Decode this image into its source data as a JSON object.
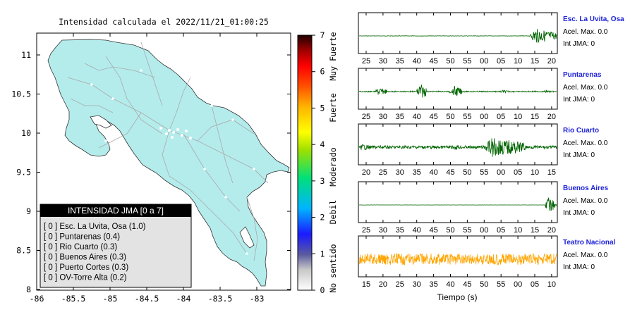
{
  "map": {
    "title": "Intensidad calculada el 2022/11/21_01:00:25",
    "x_ticks": [
      "-86",
      "-85.5",
      "-85",
      "-84.5",
      "-84",
      "-83.5",
      "-83"
    ],
    "y_ticks": [
      "11",
      "10.5",
      "10",
      "9.5",
      "9",
      "8.5",
      "8"
    ],
    "land_color": "#b4ecec",
    "legend": {
      "title": "INTENSIDAD JMA [0 a 7]",
      "items": [
        "[ 0 ]  Esc. La Uvita, Osa (1.0)",
        "[ 0 ]  Puntarenas (0.4)",
        "[ 0 ]  Rio Cuarto (0.3)",
        "[ 0 ]  Buenos Aires (0.3)",
        "[ 0 ]  Puerto Cortes (0.3)",
        "[ 0 ]  OV-Torre Alta (0.2)"
      ]
    }
  },
  "colorbar": {
    "ticks": [
      "0",
      "1",
      "2",
      "3",
      "4",
      "5",
      "6",
      "7"
    ],
    "labels": [
      "No sentido",
      "Debil",
      "Moderado",
      "Fuerte",
      "Muy Fuerte"
    ]
  },
  "seismograms": {
    "xlabel": "Tiempo (s)",
    "stations": [
      {
        "name": "Esc. La Uvita, Osa",
        "accel": "Acel. Max. 0.0",
        "int": "Int JMA: 0",
        "color": "#006400",
        "ticks": [
          "25",
          "30",
          "35",
          "40",
          "45",
          "50",
          "55",
          "00",
          "05",
          "10",
          "15",
          "20"
        ],
        "bursts": [
          [
            0.86,
            1.0,
            0.45
          ]
        ],
        "noise": 0.01
      },
      {
        "name": "Puntarenas",
        "accel": "Acel. Max. 0.0",
        "int": "Int JMA: 0",
        "color": "#006400",
        "ticks": [
          "25",
          "30",
          "35",
          "40",
          "45",
          "50",
          "55",
          "00",
          "05",
          "10",
          "15",
          "20"
        ],
        "bursts": [
          [
            0.08,
            0.14,
            0.25
          ],
          [
            0.29,
            0.34,
            0.55
          ],
          [
            0.45,
            0.49,
            0.1
          ],
          [
            0.47,
            0.52,
            0.35
          ],
          [
            0.71,
            0.76,
            0.1
          ],
          [
            0.93,
            0.98,
            0.08
          ]
        ],
        "noise": 0.03
      },
      {
        "name": "Rio Cuarto",
        "accel": "Acel. Max. 0.0",
        "int": "Int JMA: 0",
        "color": "#006400",
        "ticks": [
          "20",
          "25",
          "30",
          "35",
          "40",
          "45",
          "50",
          "55",
          "00",
          "05",
          "10",
          "15"
        ],
        "bursts": [
          [
            0.0,
            0.06,
            0.2
          ],
          [
            0.22,
            0.26,
            0.12
          ],
          [
            0.47,
            0.52,
            0.18
          ],
          [
            0.62,
            0.84,
            0.6
          ]
        ],
        "noise": 0.08
      },
      {
        "name": "Buenos Aires",
        "accel": "Acel. Max. 0.0",
        "int": "Int JMA: 0",
        "color": "#006400",
        "ticks": [
          "25",
          "30",
          "35",
          "40",
          "45",
          "50",
          "55",
          "00",
          "05",
          "10",
          "15",
          "20"
        ],
        "bursts": [
          [
            0.94,
            1.0,
            0.5
          ]
        ],
        "noise": 0.005
      },
      {
        "name": "Teatro Nacional",
        "accel": "Acel. Max. 0.0",
        "int": "Int JMA: 0",
        "color": "#ffa500",
        "ticks": [
          "15",
          "20",
          "25",
          "30",
          "35",
          "40",
          "45",
          "50",
          "55",
          "00",
          "05",
          "10"
        ],
        "bursts": [
          [
            0.0,
            1.0,
            0.35
          ]
        ],
        "noise": 0.3
      }
    ]
  }
}
